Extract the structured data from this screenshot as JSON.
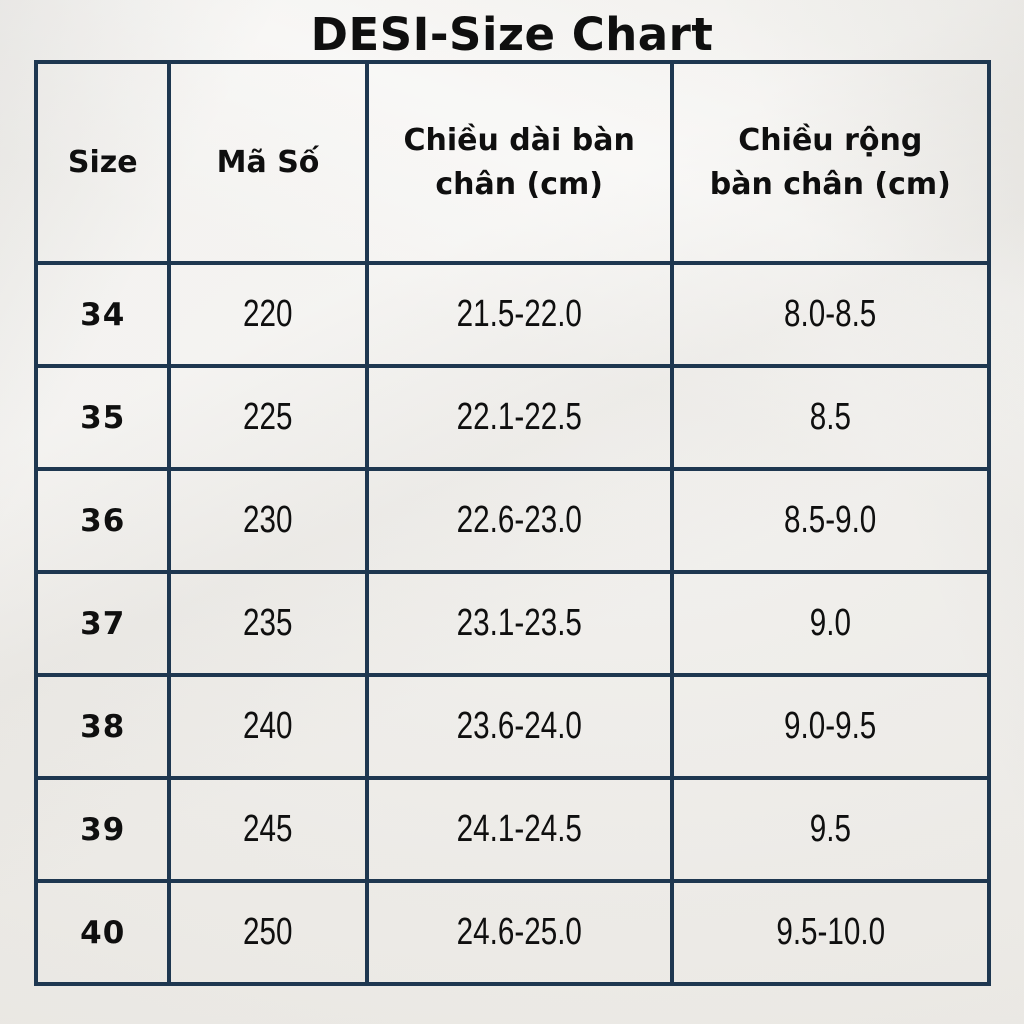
{
  "title": "DESI-Size Chart",
  "colors": {
    "border": "#1e3750",
    "text": "#0f0f0f",
    "paper": "#efede9"
  },
  "chart_data": {
    "type": "table",
    "title": "DESI-Size Chart",
    "columns": [
      "Size",
      "Mã Số",
      "Chiều dài bàn chân (cm)",
      "Chiều rộng bàn chân (cm)"
    ],
    "rows": [
      [
        "34",
        "220",
        "21.5-22.0",
        "8.0-8.5"
      ],
      [
        "35",
        "225",
        "22.1-22.5",
        "8.5"
      ],
      [
        "36",
        "230",
        "22.6-23.0",
        "8.5-9.0"
      ],
      [
        "37",
        "235",
        "23.1-23.5",
        "9.0"
      ],
      [
        "38",
        "240",
        "23.6-24.0",
        "9.0-9.5"
      ],
      [
        "39",
        "245",
        "24.1-24.5",
        "9.5"
      ],
      [
        "40",
        "250",
        "24.6-25.0",
        "9.5-10.0"
      ]
    ]
  }
}
